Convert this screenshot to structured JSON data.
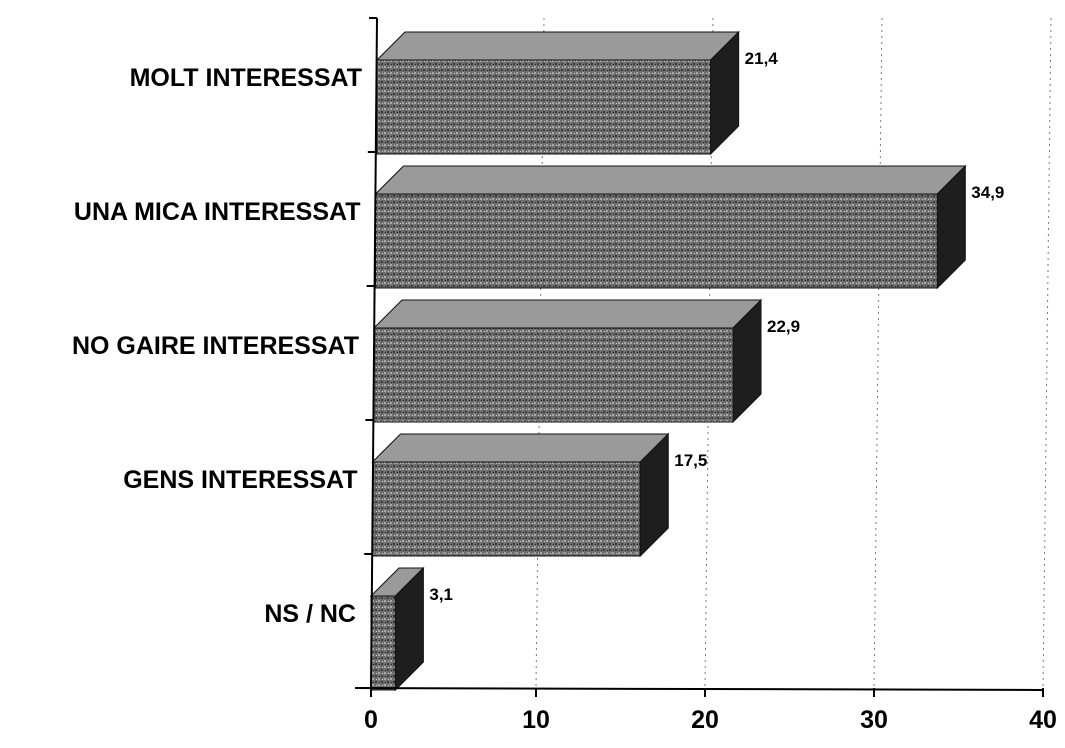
{
  "chart_data": {
    "type": "bar",
    "orientation": "horizontal",
    "style": "3d",
    "title": "",
    "xlabel": "",
    "ylabel": "",
    "categories": [
      "MOLT INTERESSAT",
      "UNA MICA INTERESSAT",
      "NO GAIRE INTERESSAT",
      "GENS INTERESSAT",
      "NS / NC"
    ],
    "values": [
      21.4,
      34.9,
      22.9,
      17.5,
      3.1
    ],
    "value_labels": [
      "21,4",
      "34,9",
      "22,9",
      "17,5",
      "3,1"
    ],
    "xlim": [
      0,
      40
    ],
    "xticks": [
      0,
      10,
      20,
      30,
      40
    ],
    "xtick_labels": [
      "0",
      "10",
      "20",
      "30",
      "40"
    ],
    "grid": "vertical dotted",
    "legend": "none",
    "colors": {
      "bar_front": "#6e6e6e",
      "bar_top": "#9a9a9a",
      "bar_side": "#1e1e1e",
      "axis": "#000000",
      "grid": "#7a7a7a"
    }
  }
}
